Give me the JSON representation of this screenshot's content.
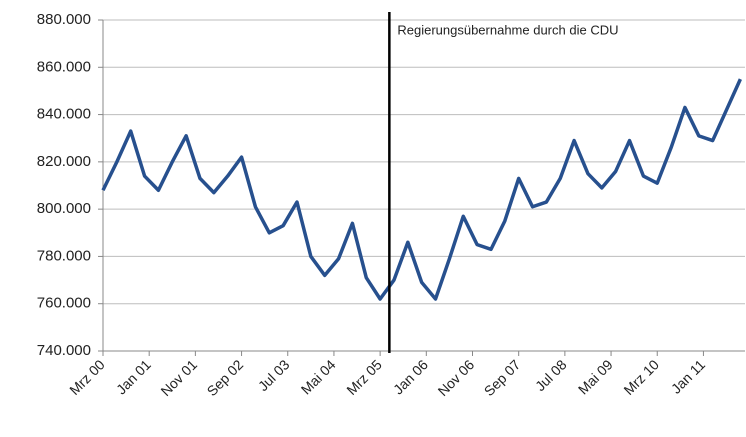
{
  "chart_data": {
    "type": "line",
    "annotation": {
      "x": 62,
      "label": "Regierungsübernahme durch die CDU"
    },
    "x": [
      0,
      3,
      6,
      9,
      12,
      15,
      18,
      21,
      24,
      27,
      30,
      33,
      36,
      39,
      42,
      45,
      48,
      51,
      54,
      57,
      60,
      63,
      66,
      69,
      72,
      75,
      78,
      81,
      84,
      87,
      90,
      93,
      96,
      99,
      102,
      105,
      108,
      111,
      114,
      117,
      120,
      123,
      126,
      129,
      132,
      135,
      138
    ],
    "series": [
      {
        "name": "",
        "color": "#27508e",
        "values": [
          808000,
          820000,
          833000,
          814000,
          808000,
          820000,
          831000,
          813000,
          807000,
          814000,
          822000,
          801000,
          790000,
          793000,
          803000,
          780000,
          772000,
          779000,
          794000,
          771000,
          762000,
          770000,
          786000,
          769000,
          762000,
          779000,
          797000,
          785000,
          783000,
          795000,
          813000,
          801000,
          803000,
          813000,
          829000,
          815000,
          809000,
          816000,
          829000,
          814000,
          811000,
          826000,
          843000,
          831000,
          829000,
          842000,
          855000
        ]
      }
    ],
    "xlim": [
      0,
      139
    ],
    "xticks": [
      {
        "value": 0,
        "label": "Mrz 00"
      },
      {
        "value": 10,
        "label": "Jan 01"
      },
      {
        "value": 20,
        "label": "Nov 01"
      },
      {
        "value": 30,
        "label": "Sep 02"
      },
      {
        "value": 40,
        "label": "Jul 03"
      },
      {
        "value": 50,
        "label": "Mai 04"
      },
      {
        "value": 60,
        "label": "Mrz 05"
      },
      {
        "value": 70,
        "label": "Jan 06"
      },
      {
        "value": 80,
        "label": "Nov 06"
      },
      {
        "value": 90,
        "label": "Sep 07"
      },
      {
        "value": 100,
        "label": "Jul 08"
      },
      {
        "value": 110,
        "label": "Mai 09"
      },
      {
        "value": 120,
        "label": "Mrz 10"
      },
      {
        "value": 130,
        "label": "Jan 11"
      }
    ],
    "ylim": [
      740000,
      880000
    ],
    "yticks": [
      {
        "value": 740000,
        "label": "740.000"
      },
      {
        "value": 760000,
        "label": "760.000"
      },
      {
        "value": 780000,
        "label": "780.000"
      },
      {
        "value": 800000,
        "label": "800.000"
      },
      {
        "value": 820000,
        "label": "820.000"
      },
      {
        "value": 840000,
        "label": "840.000"
      },
      {
        "value": 860000,
        "label": "860.000"
      },
      {
        "value": 880000,
        "label": "880.000"
      }
    ],
    "grid": true
  }
}
